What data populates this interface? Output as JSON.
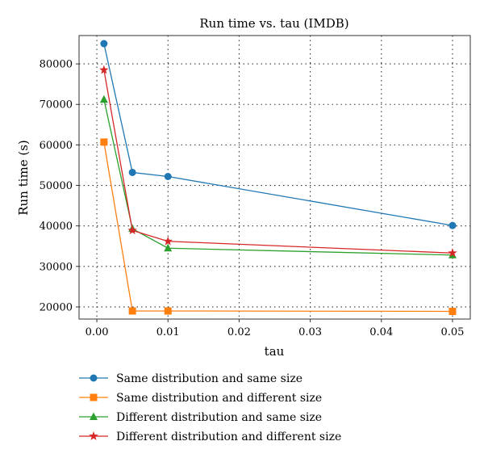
{
  "chart_data": {
    "type": "line",
    "title": "Run time vs. tau (IMDB)",
    "xlabel": "tau",
    "ylabel": "Run time (s)",
    "xlim": [
      -0.0025,
      0.0525
    ],
    "ylim": [
      17000,
      87000
    ],
    "xticks": [
      0.0,
      0.01,
      0.02,
      0.03,
      0.04,
      0.05
    ],
    "xtick_labels": [
      "0.00",
      "0.01",
      "0.02",
      "0.03",
      "0.04",
      "0.05"
    ],
    "yticks": [
      20000,
      30000,
      40000,
      50000,
      60000,
      70000,
      80000
    ],
    "ytick_labels": [
      "20000",
      "30000",
      "40000",
      "50000",
      "60000",
      "70000",
      "80000"
    ],
    "grid": true,
    "legend_position": "bottom",
    "x": [
      0.001,
      0.005,
      0.01,
      0.05
    ],
    "series": [
      {
        "name": "Same distribution and same size",
        "color": "#1f77b4",
        "marker": "circle",
        "values": [
          85000,
          53200,
          52200,
          40100
        ]
      },
      {
        "name": "Same distribution and different size",
        "color": "#ff7f0e",
        "marker": "square",
        "values": [
          60700,
          19000,
          19000,
          18900
        ]
      },
      {
        "name": "Different distribution and same size",
        "color": "#2ca02c",
        "marker": "triangle",
        "values": [
          71200,
          39300,
          34500,
          32800
        ]
      },
      {
        "name": "Different distribution and different size",
        "color": "#d62728",
        "marker": "star",
        "values": [
          78500,
          38900,
          36200,
          33300
        ]
      }
    ]
  }
}
